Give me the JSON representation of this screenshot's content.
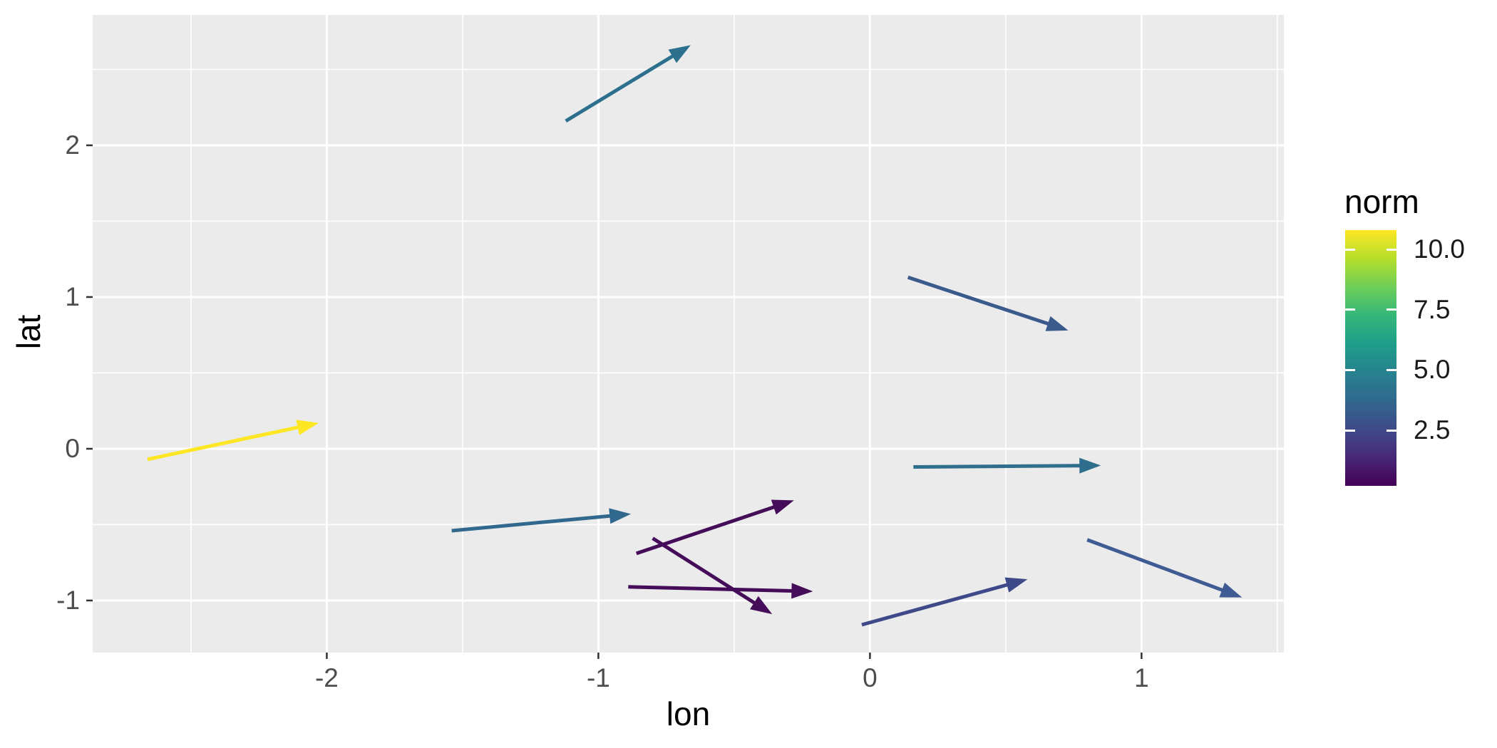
{
  "figure": {
    "background": "#ffffff"
  },
  "chart_data": {
    "type": "scatter",
    "mark": "arrow-segments",
    "title": "",
    "xlabel": "lon",
    "ylabel": "lat",
    "xlim": [
      -2.862,
      1.524
    ],
    "ylim": [
      -1.343,
      2.859
    ],
    "panel_bg": "#ebebeb",
    "grid_color": "#ffffff",
    "grid_on": true,
    "tick_mark_color": "#333333",
    "tick_label_color": "#4d4d4d",
    "x_ticks": [
      {
        "value": -2,
        "label": "-2"
      },
      {
        "value": -1,
        "label": "-1"
      },
      {
        "value": 0,
        "label": "0"
      },
      {
        "value": 1,
        "label": "1"
      }
    ],
    "x_minor_ticks": [
      -2.5,
      -1.5,
      -0.5,
      0.5,
      1.5
    ],
    "y_ticks": [
      {
        "value": -1,
        "label": "-1"
      },
      {
        "value": 0,
        "label": "0"
      },
      {
        "value": 1,
        "label": "1"
      },
      {
        "value": 2,
        "label": "2"
      }
    ],
    "y_minor_ticks": [
      -0.5,
      0.5,
      1.5,
      2.5
    ],
    "arrows": [
      {
        "x1": -1.12,
        "y1": 2.16,
        "x2": -0.66,
        "y2": 2.66,
        "color": "#2d708e"
      },
      {
        "x1": 0.14,
        "y1": 1.13,
        "x2": 0.73,
        "y2": 0.78,
        "color": "#3a5a8c"
      },
      {
        "x1": -2.66,
        "y1": -0.07,
        "x2": -2.03,
        "y2": 0.17,
        "color": "#fde725"
      },
      {
        "x1": 0.16,
        "y1": -0.12,
        "x2": 0.85,
        "y2": -0.11,
        "color": "#2f6e8d"
      },
      {
        "x1": -1.54,
        "y1": -0.54,
        "x2": -0.88,
        "y2": -0.43,
        "color": "#31688e"
      },
      {
        "x1": -0.86,
        "y1": -0.69,
        "x2": -0.28,
        "y2": -0.34,
        "color": "#450d59"
      },
      {
        "x1": -0.8,
        "y1": -0.59,
        "x2": -0.36,
        "y2": -1.09,
        "color": "#450d59"
      },
      {
        "x1": -0.89,
        "y1": -0.91,
        "x2": -0.21,
        "y2": -0.94,
        "color": "#450d59"
      },
      {
        "x1": -0.03,
        "y1": -1.16,
        "x2": 0.58,
        "y2": -0.86,
        "color": "#3e4989"
      },
      {
        "x1": 0.8,
        "y1": -0.6,
        "x2": 1.37,
        "y2": -0.98,
        "color": "#3f5b93"
      }
    ],
    "legend": {
      "title": "norm",
      "bar_range": [
        0.2,
        10.8
      ],
      "ticks": [
        {
          "value": 10.0,
          "label": "10.0"
        },
        {
          "value": 7.5,
          "label": "7.5"
        },
        {
          "value": 5.0,
          "label": "5.0"
        },
        {
          "value": 2.5,
          "label": "2.5"
        }
      ],
      "viridis_colors": [
        "#440154",
        "#482878",
        "#3e4a89",
        "#31688e",
        "#26828e",
        "#1f9e89",
        "#35b779",
        "#6ece58",
        "#b5de2b",
        "#fde725"
      ]
    }
  }
}
